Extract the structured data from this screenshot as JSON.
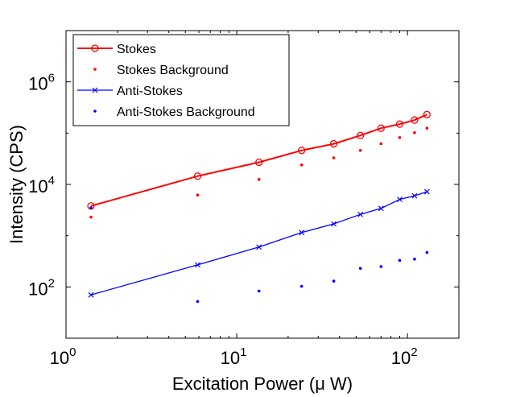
{
  "chart_data": {
    "type": "scatter",
    "xlabel": "Excitation Power (μ W)",
    "ylabel": "Intensity (CPS)",
    "xscale": "log",
    "yscale": "log",
    "xlim": [
      1,
      200
    ],
    "ylim": [
      10,
      10000000
    ],
    "x_ticks": [
      {
        "value": 1,
        "base": "10",
        "exp": "0"
      },
      {
        "value": 10,
        "base": "10",
        "exp": "1"
      },
      {
        "value": 100,
        "base": "10",
        "exp": "2"
      }
    ],
    "y_ticks": [
      {
        "value": 100,
        "base": "10",
        "exp": "2"
      },
      {
        "value": 10000,
        "base": "10",
        "exp": "4"
      },
      {
        "value": 1000000,
        "base": "10",
        "exp": "6"
      }
    ],
    "grid": false,
    "legend_position": "top-left",
    "series": [
      {
        "name": "Stokes",
        "color": "#ff0000",
        "style": "line-circle",
        "x": [
          1.4,
          5.9,
          13.5,
          24,
          37,
          53,
          70,
          90,
          110,
          130
        ],
        "y": [
          3800,
          14500,
          27000,
          46000,
          62000,
          90000,
          125000,
          150000,
          180000,
          230000
        ]
      },
      {
        "name": "Stokes Background",
        "color": "#ff0000",
        "style": "dot",
        "x": [
          1.4,
          5.9,
          13.5,
          24,
          37,
          53,
          70,
          90,
          110,
          130
        ],
        "y": [
          2300,
          6200,
          12500,
          24000,
          33000,
          46000,
          62000,
          82000,
          102000,
          125000
        ]
      },
      {
        "name": "Anti-Stokes",
        "color": "#0000ff",
        "style": "line-x",
        "x": [
          1.4,
          5.9,
          13.5,
          24,
          37,
          53,
          70,
          90,
          110,
          130
        ],
        "y": [
          70,
          270,
          600,
          1150,
          1700,
          2600,
          3400,
          5100,
          6000,
          7200
        ]
      },
      {
        "name": "Anti-Stokes Background",
        "color": "#0000ff",
        "style": "dot",
        "x": [
          1.4,
          5.9,
          13.5,
          24,
          37,
          53,
          70,
          90,
          110,
          130
        ],
        "y": [
          3500,
          52,
          83,
          103,
          130,
          230,
          250,
          330,
          350,
          470
        ]
      }
    ]
  }
}
